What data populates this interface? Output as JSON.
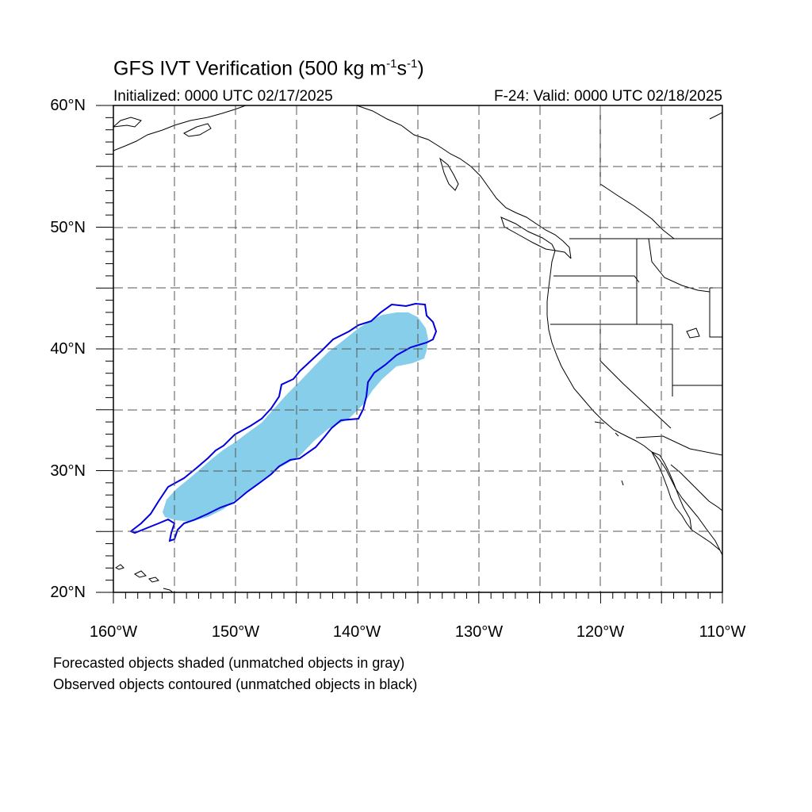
{
  "figure": {
    "title_main": "GFS IVT Verification (500 kg m",
    "title_exp1": "-1",
    "title_mid": "s",
    "title_exp2": "-1",
    "title_end": ")",
    "initialized": "Initialized: 0000 UTC 02/17/2025",
    "valid": "F-24: Valid: 0000 UTC 02/18/2025"
  },
  "axes": {
    "lat_labels": [
      "60°N",
      "50°N",
      "40°N",
      "30°N",
      "20°N"
    ],
    "lon_labels": [
      "160°W",
      "150°W",
      "140°W",
      "130°W",
      "120°W",
      "110°W"
    ],
    "lat_range": [
      20,
      60
    ],
    "lon_range": [
      -160,
      -110
    ],
    "grid": "dashed, every 5 degrees"
  },
  "legend": {
    "line1": "Forecasted objects shaded (unmatched objects in gray)",
    "line2": "Observed objects contoured (unmatched objects in black)"
  },
  "colors": {
    "forecast_fill": "#87ceea",
    "observed_contour": "#0000e0",
    "coastline": "#000000",
    "grid": "#555555"
  }
}
